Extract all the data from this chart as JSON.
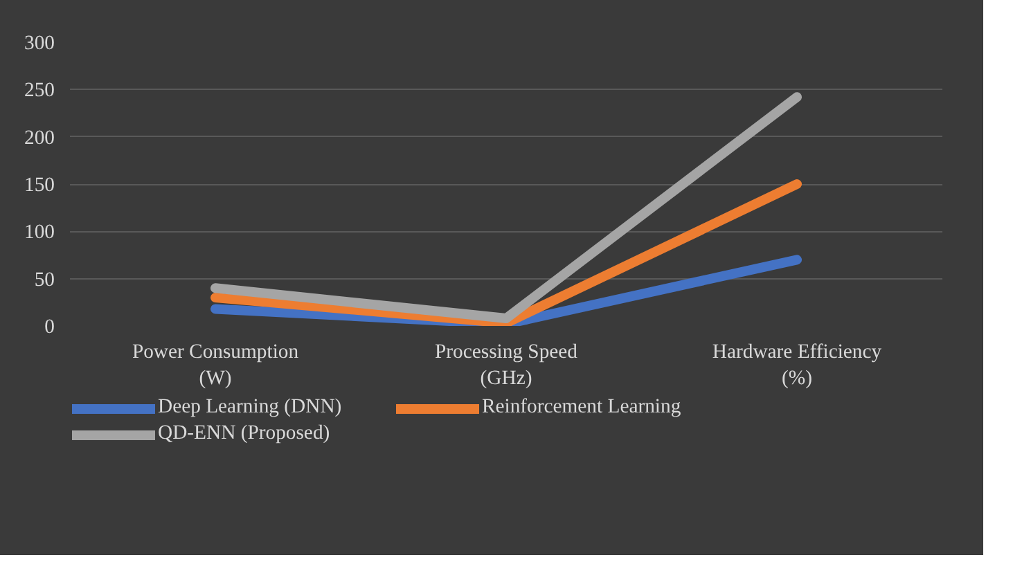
{
  "chart_data": {
    "type": "line",
    "categories": [
      "Power Consumption\n(W)",
      "Processing Speed\n(GHz)",
      "Hardware Efficiency\n(%)"
    ],
    "series": [
      {
        "name": "Deep Learning (DNN)",
        "color": "#4472c4",
        "values": [
          18,
          2,
          70
        ]
      },
      {
        "name": "Reinforcement Learning",
        "color": "#ed7d31",
        "values": [
          30,
          3,
          150
        ]
      },
      {
        "name": "QD-ENN (Proposed)",
        "color": "#a5a5a5",
        "values": [
          40,
          8,
          242
        ]
      }
    ],
    "ylim": [
      0,
      300
    ],
    "yticks": [
      0,
      50,
      100,
      150,
      200,
      250,
      300
    ],
    "grid": "y",
    "legend": "bottom",
    "marker": "none",
    "line_style": "solid"
  }
}
